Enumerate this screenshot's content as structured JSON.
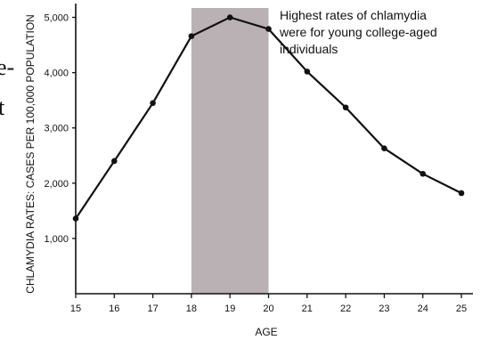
{
  "chart_data": {
    "type": "line",
    "title": "",
    "xlabel": "AGE",
    "ylabel": "CHLAMYDIA RATES: CASES PER 100,000 POPULATION",
    "x": [
      15,
      16,
      17,
      18,
      19,
      20,
      21,
      22,
      23,
      24,
      25
    ],
    "x_ticks": [
      "15",
      "16",
      "17",
      "18",
      "19",
      "20",
      "21",
      "22",
      "23",
      "24",
      "25"
    ],
    "y_ticks": [
      {
        "value": 1000,
        "label": "1,000"
      },
      {
        "value": 2000,
        "label": "2,000"
      },
      {
        "value": 3000,
        "label": "3,000"
      },
      {
        "value": 4000,
        "label": "4,000"
      },
      {
        "value": 5000,
        "label": "5,000"
      }
    ],
    "series": [
      {
        "values": [
          1360,
          2400,
          3450,
          4660,
          5000,
          4790,
          4020,
          3370,
          2630,
          2170,
          1820
        ]
      }
    ],
    "xlim": [
      15,
      25.3
    ],
    "ylim": [
      0,
      5250
    ],
    "grid": false,
    "highlight": {
      "x_range": [
        18,
        20
      ],
      "color": "#b9b1b3"
    },
    "annotation": {
      "lines": [
        "Highest rates of chlamydia",
        "were for young college-aged",
        "individuals"
      ]
    },
    "cropped_text": [
      "e-",
      "t"
    ],
    "colors": {
      "line": "#111111",
      "axis": "#111111",
      "background": "#ffffff"
    }
  }
}
